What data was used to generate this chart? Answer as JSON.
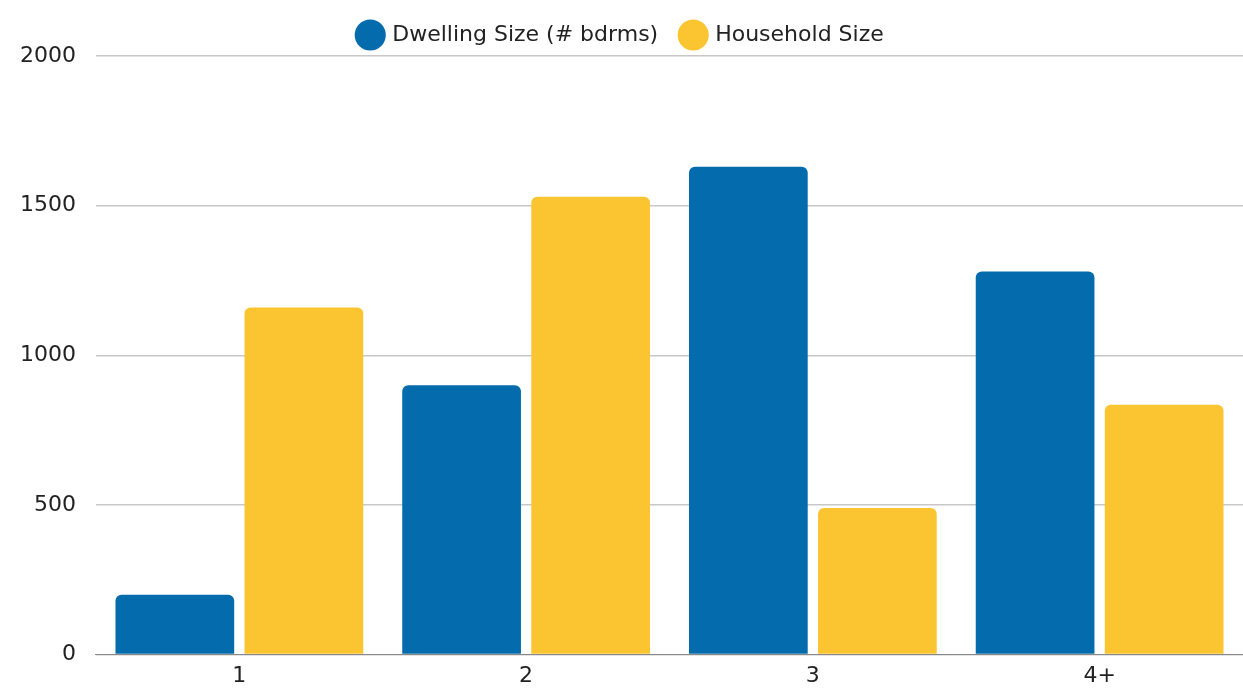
{
  "chart_data": {
    "type": "bar",
    "categories": [
      "1",
      "2",
      "3",
      "4+"
    ],
    "series": [
      {
        "name": "Dwelling Size (# bdrms)",
        "color": "#046cad",
        "values": [
          200,
          900,
          1630,
          1280
        ]
      },
      {
        "name": "Household Size",
        "color": "#fbc531",
        "values": [
          1160,
          1530,
          490,
          835
        ]
      }
    ],
    "ylim": [
      0,
      2000
    ],
    "yticks": [
      0,
      500,
      1000,
      1500,
      2000
    ],
    "grid": "y",
    "legend": "top"
  }
}
